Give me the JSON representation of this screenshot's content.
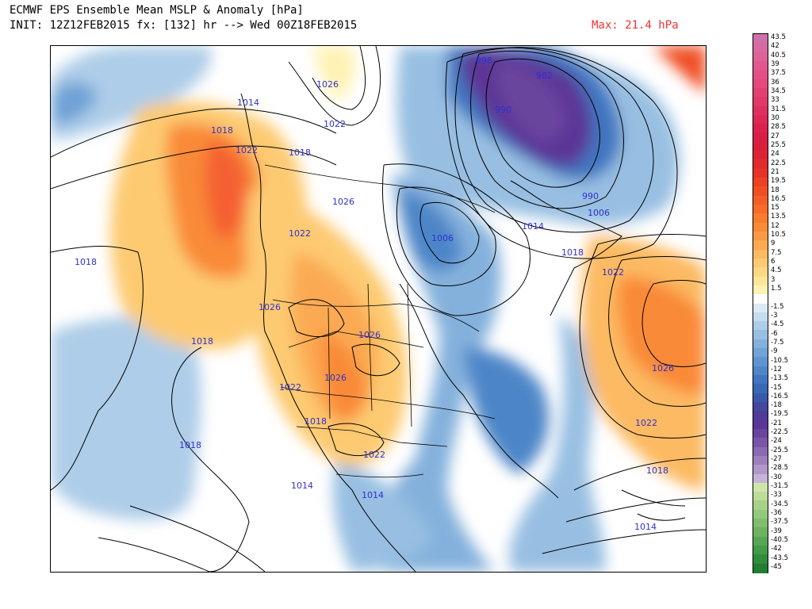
{
  "header": {
    "title": "ECMWF EPS Ensemble Mean MSLP & Anomaly [hPa]",
    "init_line": "INIT: 12Z12FEB2015 fx: [132] hr --> Wed 00Z18FEB2015",
    "max_label": "Max: 21.4 hPa"
  },
  "colors": {
    "isobar_label": "#3030d0",
    "max_label": "#ee3333"
  },
  "map": {
    "isobar_labels": [
      {
        "text": "1026"
      },
      {
        "text": "1014"
      },
      {
        "text": "1018"
      },
      {
        "text": "1022"
      },
      {
        "text": "1022"
      },
      {
        "text": "1018"
      },
      {
        "text": "1026"
      },
      {
        "text": "1022"
      },
      {
        "text": "1018"
      },
      {
        "text": "1026"
      },
      {
        "text": "1018"
      },
      {
        "text": "1026"
      },
      {
        "text": "1026"
      },
      {
        "text": "1022"
      },
      {
        "text": "1018"
      },
      {
        "text": "1018"
      },
      {
        "text": "1022"
      },
      {
        "text": "1014"
      },
      {
        "text": "1014"
      },
      {
        "text": "1006"
      },
      {
        "text": "1014"
      },
      {
        "text": "1018"
      },
      {
        "text": "998"
      },
      {
        "text": "1006"
      },
      {
        "text": "982"
      },
      {
        "text": "990"
      },
      {
        "text": "990"
      },
      {
        "text": "1022"
      },
      {
        "text": "1026"
      },
      {
        "text": "1022"
      },
      {
        "text": "1018"
      },
      {
        "text": "1014"
      }
    ]
  },
  "colorbar": {
    "entries": [
      {
        "label": "43.5",
        "color": "#d070a8"
      },
      {
        "label": "42",
        "color": "#d86aa2"
      },
      {
        "label": "40.5",
        "color": "#dc6298"
      },
      {
        "label": "39",
        "color": "#e0588e"
      },
      {
        "label": "37.5",
        "color": "#e45084"
      },
      {
        "label": "36",
        "color": "#e4487c"
      },
      {
        "label": "34.5",
        "color": "#e24072"
      },
      {
        "label": "33",
        "color": "#e03868"
      },
      {
        "label": "31.5",
        "color": "#de305e"
      },
      {
        "label": "30",
        "color": "#dc2854"
      },
      {
        "label": "28.5",
        "color": "#da224c"
      },
      {
        "label": "27",
        "color": "#d81e44"
      },
      {
        "label": "25.5",
        "color": "#d8203c"
      },
      {
        "label": "24",
        "color": "#dc2434"
      },
      {
        "label": "22.5",
        "color": "#e02a2c"
      },
      {
        "label": "21",
        "color": "#e63228"
      },
      {
        "label": "19.5",
        "color": "#ec4024"
      },
      {
        "label": "18",
        "color": "#f04e22"
      },
      {
        "label": "16.5",
        "color": "#f45e24"
      },
      {
        "label": "15",
        "color": "#f66c28"
      },
      {
        "label": "13.5",
        "color": "#f87c30"
      },
      {
        "label": "12",
        "color": "#f98a38"
      },
      {
        "label": "10.5",
        "color": "#fa9a44"
      },
      {
        "label": "9",
        "color": "#fbaa52"
      },
      {
        "label": "7.5",
        "color": "#fcba62"
      },
      {
        "label": "6",
        "color": "#fdca72"
      },
      {
        "label": "4.5",
        "color": "#fdd884"
      },
      {
        "label": "3",
        "color": "#fee698"
      },
      {
        "label": "1.5",
        "color": "#fff2b4"
      },
      {
        "label": "",
        "color": "#ffffff"
      },
      {
        "label": "-1.5",
        "color": "#dceaf4"
      },
      {
        "label": "-3",
        "color": "#c4dcee"
      },
      {
        "label": "-4.5",
        "color": "#aecde8"
      },
      {
        "label": "-6",
        "color": "#98bfe2"
      },
      {
        "label": "-7.5",
        "color": "#84b1dc"
      },
      {
        "label": "-9",
        "color": "#70a3d6"
      },
      {
        "label": "-10.5",
        "color": "#5e95d0"
      },
      {
        "label": "-12",
        "color": "#4e86c8"
      },
      {
        "label": "-13.5",
        "color": "#4076c0"
      },
      {
        "label": "-15",
        "color": "#3868b6"
      },
      {
        "label": "-16.5",
        "color": "#3a58aa"
      },
      {
        "label": "-18",
        "color": "#44489e"
      },
      {
        "label": "-19.5",
        "color": "#503c98"
      },
      {
        "label": "-21",
        "color": "#5c3696"
      },
      {
        "label": "-22.5",
        "color": "#6a449e"
      },
      {
        "label": "-24",
        "color": "#7a56a8"
      },
      {
        "label": "-25.5",
        "color": "#8a6ab2"
      },
      {
        "label": "-27",
        "color": "#9c80be"
      },
      {
        "label": "-28.5",
        "color": "#b098ca"
      },
      {
        "label": "-30",
        "color": "#c6b4d8"
      },
      {
        "label": "-31.5",
        "color": "#cfe6a8"
      },
      {
        "label": "-33",
        "color": "#bcdc98"
      },
      {
        "label": "-34.5",
        "color": "#a8d288"
      },
      {
        "label": "-36",
        "color": "#94c87a"
      },
      {
        "label": "-37.5",
        "color": "#80bd6c"
      },
      {
        "label": "-39",
        "color": "#6cb260"
      },
      {
        "label": "-40.5",
        "color": "#58a654"
      },
      {
        "label": "-42",
        "color": "#449a48"
      },
      {
        "label": "-43.5",
        "color": "#328c3c"
      },
      {
        "label": "-45",
        "color": "#227e30"
      }
    ]
  }
}
